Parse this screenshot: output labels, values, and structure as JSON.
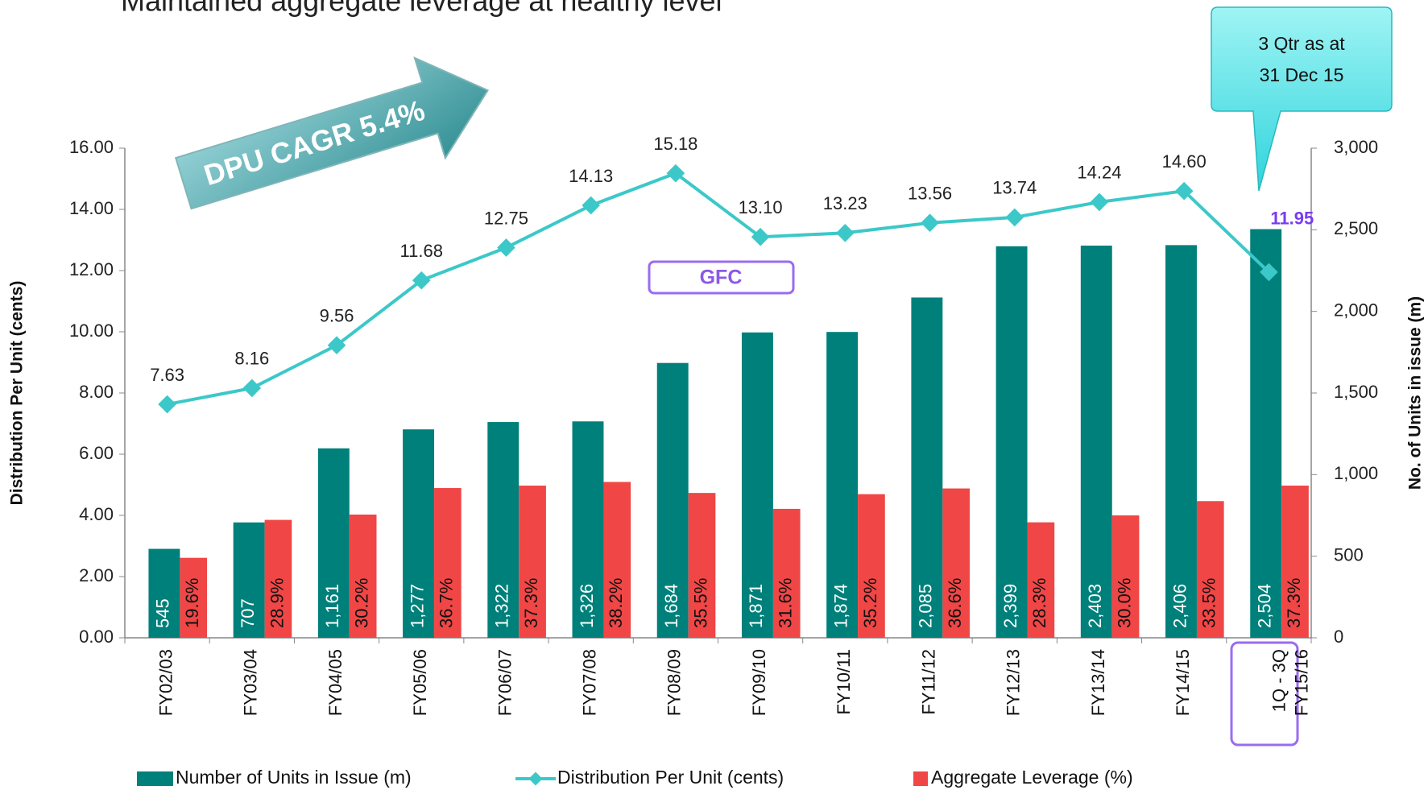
{
  "chart_data": {
    "type": "bar-line",
    "title": "Maintained aggregate leverage at healthy level",
    "categories": [
      "FY02/03",
      "FY03/04",
      "FY04/05",
      "FY05/06",
      "FY06/07",
      "FY07/08",
      "FY08/09",
      "FY09/10",
      "FY10/11",
      "FY11/12",
      "FY12/13",
      "FY13/14",
      "FY14/15",
      "1Q - 3Q FY15/16"
    ],
    "series": [
      {
        "name": "Number of Units in Issue (m)",
        "type": "bar",
        "axis": "y2",
        "color": "#00807a",
        "values": [
          545,
          707,
          1161,
          1277,
          1322,
          1326,
          1684,
          1871,
          1874,
          2085,
          2399,
          2403,
          2406,
          2504
        ],
        "value_labels": [
          "545",
          "707",
          "1,161",
          "1,277",
          "1,322",
          "1,326",
          "1,684",
          "1,871",
          "1,874",
          "2,085",
          "2,399",
          "2,403",
          "2,406",
          "2,504"
        ]
      },
      {
        "name": "Distribution Per Unit (cents)",
        "type": "line",
        "axis": "y",
        "color": "#3cc8c8",
        "values": [
          7.63,
          8.16,
          9.56,
          11.68,
          12.75,
          14.13,
          15.18,
          13.1,
          13.23,
          13.56,
          13.74,
          14.24,
          14.6,
          11.95
        ],
        "value_labels": [
          "7.63",
          "8.16",
          "9.56",
          "11.68",
          "12.75",
          "14.13",
          "15.18",
          "13.10",
          "13.23",
          "13.56",
          "13.74",
          "14.24",
          "14.60",
          "11.95"
        ]
      },
      {
        "name": "Aggregate Leverage (%)",
        "type": "bar",
        "axis": "y3",
        "color": "#f04646",
        "values": [
          19.6,
          28.9,
          30.2,
          36.7,
          37.3,
          38.2,
          35.5,
          31.6,
          35.2,
          36.6,
          28.3,
          30.0,
          33.5,
          37.3
        ],
        "value_labels": [
          "19.6%",
          "28.9%",
          "30.2%",
          "36.7%",
          "37.3%",
          "38.2%",
          "35.5%",
          "31.6%",
          "35.2%",
          "36.6%",
          "28.3%",
          "30.0%",
          "33.5%",
          "37.3%"
        ]
      }
    ],
    "y_label": "Distribution Per Unit (cents)",
    "y2_label": "No. of Units in issue (m)",
    "ylim": [
      0,
      16
    ],
    "yticks": [
      {
        "value": 0,
        "label": "0.00"
      },
      {
        "value": 2,
        "label": "2.00"
      },
      {
        "value": 4,
        "label": "4.00"
      },
      {
        "value": 6,
        "label": "6.00"
      },
      {
        "value": 8,
        "label": "8.00"
      },
      {
        "value": 10,
        "label": "10.00"
      },
      {
        "value": 12,
        "label": "12.00"
      },
      {
        "value": 14,
        "label": "14.00"
      },
      {
        "value": 16,
        "label": "16.00"
      }
    ],
    "y2lim": [
      0,
      3000
    ],
    "y2ticks": [
      0,
      500,
      {
        "value": 1000,
        "label": "1,000"
      },
      {
        "value": 1500,
        "label": "1,500"
      },
      {
        "value": 2000,
        "label": "2,000"
      },
      {
        "value": 2500,
        "label": "2,500"
      },
      {
        "value": 3000,
        "label": "3,000"
      }
    ],
    "y3lim": [
      0,
      120
    ],
    "annotations": {
      "cagr": "DPU CAGR 5.4%",
      "gfc": "GFC",
      "callout": [
        "3 Qtr as at",
        "31 Dec 15"
      ]
    },
    "legend": "bottom"
  }
}
